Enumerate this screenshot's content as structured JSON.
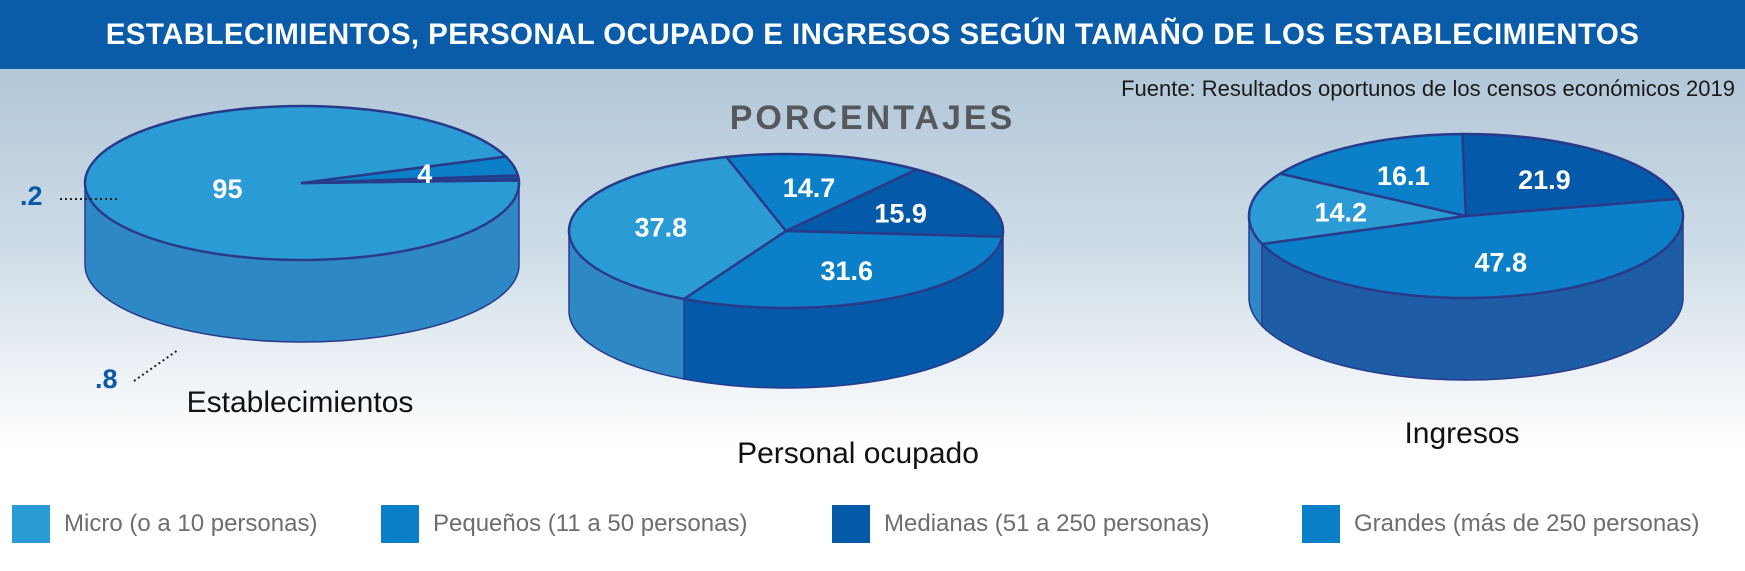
{
  "header": {
    "title": "ESTABLECIMIENTOS, PERSONAL OCUPADO E INGRESOS SEGÚN TAMAÑO DE LOS ESTABLECIMIENTOS",
    "source": "Fuente: Resultados oportunos de los censos económicos 2019",
    "subtitle": "PORCENTAJES"
  },
  "colors": {
    "title_bar": "#0a5ca8",
    "micro": "#2b9bd6",
    "pequenos": "#0b80c9",
    "medianas": "#045aa8",
    "grandes": "#0b80c9",
    "grandes_ingresos": "#2f3286"
  },
  "chart_data": [
    {
      "type": "pie",
      "title": "Establecimientos",
      "slices": [
        {
          "name": "Micro (o a 10 personas)",
          "value": 95,
          "label": "95"
        },
        {
          "name": "Pequeños (11 a 50 personas)",
          "value": 4,
          "label": "4"
        },
        {
          "name": "Medianas (51 a 250 personas)",
          "value": 0.8,
          "label": ".8"
        },
        {
          "name": "Grandes (más de 250 personas)",
          "value": 0.2,
          "label": ".2"
        }
      ]
    },
    {
      "type": "pie",
      "title": "Personal ocupado",
      "slices": [
        {
          "name": "Micro (o a 10 personas)",
          "value": 37.8,
          "label": "37.8"
        },
        {
          "name": "Pequeños (11 a 50 personas)",
          "value": 14.7,
          "label": "14.7"
        },
        {
          "name": "Medianas (51 a 250 personas)",
          "value": 15.9,
          "label": "15.9"
        },
        {
          "name": "Grandes (más de 250 personas)",
          "value": 31.6,
          "label": "31.6"
        }
      ]
    },
    {
      "type": "pie",
      "title": "Ingresos",
      "slices": [
        {
          "name": "Micro (o a 10 personas)",
          "value": 14.2,
          "label": "14.2"
        },
        {
          "name": "Pequeños (11 a 50 personas)",
          "value": 16.1,
          "label": "16.1"
        },
        {
          "name": "Medianas (51 a 250 personas)",
          "value": 21.9,
          "label": "21.9"
        },
        {
          "name": "Grandes (más de 250 personas)",
          "value": 47.8,
          "label": "47.8"
        }
      ]
    }
  ],
  "legend": [
    {
      "label": "Micro (o a 10 personas)",
      "color": "#2b9bd6"
    },
    {
      "label": "Pequeños (11 a 50 personas)",
      "color": "#0b80c9"
    },
    {
      "label": "Medianas (51 a 250 personas)",
      "color": "#045aa8"
    },
    {
      "label": "Grandes (más de 250 personas)",
      "color": "#0b80c9"
    }
  ]
}
